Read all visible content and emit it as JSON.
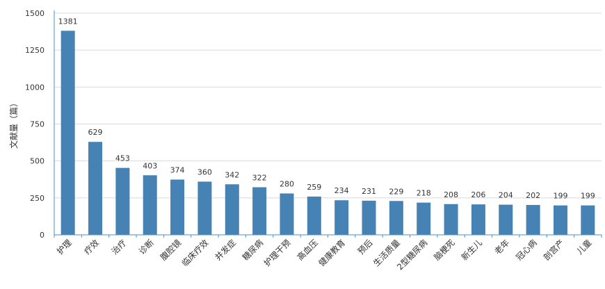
{
  "chart_data": {
    "type": "bar",
    "title": "",
    "xlabel": "",
    "ylabel": "文献量（篇）",
    "ylim": [
      0,
      1500
    ],
    "yticks": [
      0,
      250,
      500,
      750,
      1000,
      1250,
      1500
    ],
    "grid": true,
    "bar_color": "#4682b4",
    "categories": [
      "护理",
      "疗效",
      "治疗",
      "诊断",
      "腹腔镜",
      "临床疗效",
      "并发症",
      "糖尿病",
      "护理干预",
      "高血压",
      "健康教育",
      "预后",
      "生活质量",
      "2型糖尿病",
      "脑梗死",
      "新生儿",
      "老年",
      "冠心病",
      "剖宫产",
      "儿童"
    ],
    "values": [
      1381,
      629,
      453,
      403,
      374,
      360,
      342,
      322,
      280,
      259,
      234,
      231,
      229,
      218,
      208,
      206,
      204,
      202,
      199,
      199
    ]
  }
}
